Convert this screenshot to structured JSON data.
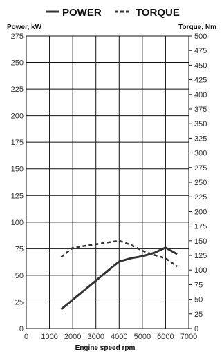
{
  "chart_data": {
    "type": "line",
    "xlabel": "Engine speed rpm",
    "ylabel_left": "Power, kW",
    "ylabel_right": "Torque, Nm",
    "xlim": [
      0,
      7000
    ],
    "ylim_left": [
      0,
      275
    ],
    "ylim_right": [
      0,
      500
    ],
    "x_ticks": [
      0,
      1000,
      2000,
      3000,
      4000,
      5000,
      6000,
      7000
    ],
    "y_left_ticks": [
      0,
      25,
      50,
      75,
      100,
      125,
      150,
      175,
      200,
      225,
      250,
      275
    ],
    "y_right_ticks": [
      0,
      25,
      50,
      75,
      100,
      125,
      150,
      175,
      200,
      225,
      250,
      275,
      300,
      325,
      350,
      375,
      400,
      425,
      450,
      475,
      500
    ],
    "grid": true,
    "legend_placement": "top-center",
    "series": [
      {
        "name": "POWER",
        "axis": "left",
        "style": "solid",
        "color": "#333333",
        "x": [
          1500,
          2000,
          2500,
          3000,
          3500,
          4000,
          4500,
          5000,
          5500,
          6000,
          6500
        ],
        "y": [
          18,
          27,
          36,
          45,
          54,
          63,
          66,
          68,
          71,
          76,
          70
        ]
      },
      {
        "name": "TORQUE",
        "axis": "right",
        "style": "dashed",
        "color": "#333333",
        "x": [
          1500,
          2000,
          2500,
          3000,
          3500,
          4000,
          4500,
          5000,
          5500,
          6000,
          6500
        ],
        "y": [
          122,
          138,
          141,
          144,
          147,
          150,
          143,
          133,
          126,
          120,
          106
        ]
      }
    ]
  }
}
